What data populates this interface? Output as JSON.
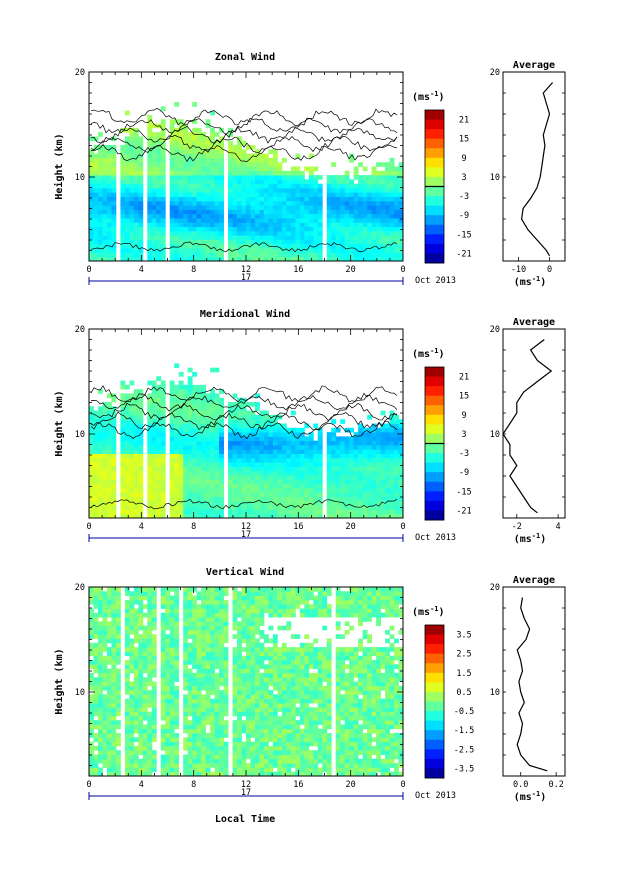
{
  "panels": [
    {
      "id": "zonal",
      "title": "Zonal Wind",
      "ylabel": "Height (km)",
      "units": "(ms",
      "units_sup": "-1",
      "x_ticks": [
        "0",
        "4",
        "8",
        "12",
        "16",
        "20",
        "0"
      ],
      "y_ticks": [
        "20",
        "10"
      ],
      "day": "17",
      "date": "Oct 2013",
      "colorbar_ticks": [
        "21",
        "15",
        "9",
        "3",
        "-3",
        "-9",
        "-15",
        "-21"
      ],
      "avg_title": "Average",
      "avg_x_ticks": [
        "-10",
        "0"
      ],
      "avg_y_ticks": [
        "20",
        "10"
      ],
      "avg_units": "(ms",
      "avg_units_sup": "-1"
    },
    {
      "id": "meridional",
      "title": "Meridional Wind",
      "ylabel": "Height (km)",
      "units": "(ms",
      "units_sup": "-1",
      "x_ticks": [
        "0",
        "4",
        "8",
        "12",
        "16",
        "20",
        "0"
      ],
      "y_ticks": [
        "20",
        "10"
      ],
      "day": "17",
      "date": "Oct 2013",
      "colorbar_ticks": [
        "21",
        "15",
        "9",
        "3",
        "-3",
        "-9",
        "-15",
        "-21"
      ],
      "avg_title": "Average",
      "avg_x_ticks": [
        "-2",
        "4"
      ],
      "avg_y_ticks": [
        "20",
        "10"
      ],
      "avg_units": "(ms",
      "avg_units_sup": "-1"
    },
    {
      "id": "vertical",
      "title": "Vertical Wind",
      "ylabel": "Height (km)",
      "units": "(ms",
      "units_sup": "-1",
      "x_ticks": [
        "0",
        "4",
        "8",
        "12",
        "16",
        "20",
        "0"
      ],
      "y_ticks": [
        "20",
        "10"
      ],
      "day": "17",
      "date": "Oct 2013",
      "colorbar_ticks": [
        "3.5",
        "2.5",
        "1.5",
        "0.5",
        "-0.5",
        "-1.5",
        "-2.5",
        "-3.5"
      ],
      "avg_title": "Average",
      "avg_x_ticks": [
        "0.0",
        "0.2"
      ],
      "avg_y_ticks": [
        "20",
        "10"
      ],
      "avg_units": "(ms",
      "avg_units_sup": "-1"
    }
  ],
  "xlabel": "Local Time",
  "chart_data": [
    {
      "type": "heatmap",
      "title": "Zonal Wind",
      "xlabel": "",
      "ylabel": "Height (km)",
      "xlim": [
        0,
        24
      ],
      "ylim": [
        2,
        20
      ],
      "colorbar": {
        "units": "ms^-1",
        "range": [
          -24,
          24
        ],
        "ticks": [
          21,
          15,
          9,
          3,
          -3,
          -9,
          -15,
          -21
        ]
      },
      "time_h": [
        0,
        2,
        4,
        6,
        8,
        10,
        12,
        14,
        16,
        18,
        20,
        22,
        24
      ],
      "profile_height_km": [
        4,
        6,
        8,
        10,
        12
      ],
      "profile_value_ms": [
        -2,
        -9,
        -7,
        -6,
        -3
      ],
      "average": {
        "xlim": [
          -15,
          5
        ],
        "height_km": [
          2.5,
          3,
          4,
          5,
          6,
          7,
          8,
          9,
          10,
          11,
          12,
          13,
          14,
          15,
          16,
          17,
          18,
          19
        ],
        "value_ms": [
          0,
          -1,
          -4,
          -7,
          -9,
          -8.5,
          -6,
          -4,
          -3,
          -2.5,
          -2,
          -1.5,
          -2,
          -1,
          0,
          -1,
          -2,
          1
        ]
      }
    },
    {
      "type": "heatmap",
      "title": "Meridional Wind",
      "xlabel": "",
      "ylabel": "Height (km)",
      "xlim": [
        0,
        24
      ],
      "ylim": [
        2,
        20
      ],
      "colorbar": {
        "units": "ms^-1",
        "range": [
          -24,
          24
        ],
        "ticks": [
          21,
          15,
          9,
          3,
          -3,
          -9,
          -15,
          -21
        ]
      },
      "time_h": [
        0,
        2,
        4,
        6,
        8,
        10,
        12,
        14,
        16,
        18,
        20,
        22,
        24
      ],
      "profile_height_km": [
        4,
        6,
        8,
        10,
        12
      ],
      "profile_value_ms": [
        -2,
        3,
        -8,
        -9,
        -5
      ],
      "average": {
        "xlim": [
          -4,
          5
        ],
        "height_km": [
          2.5,
          3,
          4,
          5,
          6,
          7,
          8,
          9,
          10,
          11,
          12,
          13,
          14,
          15,
          16,
          17,
          18,
          19
        ],
        "value_ms": [
          1,
          0,
          -1,
          -2,
          -3,
          -2,
          -3,
          -3,
          -4,
          -3,
          -2,
          -2,
          -1,
          1,
          3,
          1,
          0,
          2
        ]
      }
    },
    {
      "type": "heatmap",
      "title": "Vertical Wind",
      "xlabel": "Local Time",
      "ylabel": "Height (km)",
      "xlim": [
        0,
        24
      ],
      "ylim": [
        2,
        20
      ],
      "colorbar": {
        "units": "ms^-1",
        "range": [
          -4,
          4
        ],
        "ticks": [
          3.5,
          2.5,
          1.5,
          0.5,
          -0.5,
          -1.5,
          -2.5,
          -3.5
        ]
      },
      "time_h": [
        0,
        2,
        4,
        6,
        8,
        10,
        12,
        14,
        16,
        18,
        20,
        22,
        24
      ],
      "profile_height_km": [
        4,
        6,
        8,
        10,
        12
      ],
      "profile_value_ms": [
        -0.3,
        -0.4,
        -0.3,
        -0.4,
        -0.2
      ],
      "average": {
        "xlim": [
          -0.1,
          0.25
        ],
        "height_km": [
          2.5,
          3,
          4,
          5,
          6,
          7,
          8,
          9,
          10,
          11,
          12,
          13,
          14,
          15,
          16,
          17,
          18,
          19
        ],
        "value_ms": [
          0.15,
          0.05,
          0.0,
          -0.02,
          0.0,
          0.01,
          -0.01,
          0.02,
          0.0,
          -0.01,
          0.01,
          0.0,
          -0.02,
          0.03,
          0.05,
          0.02,
          0.0,
          0.01
        ]
      }
    }
  ]
}
